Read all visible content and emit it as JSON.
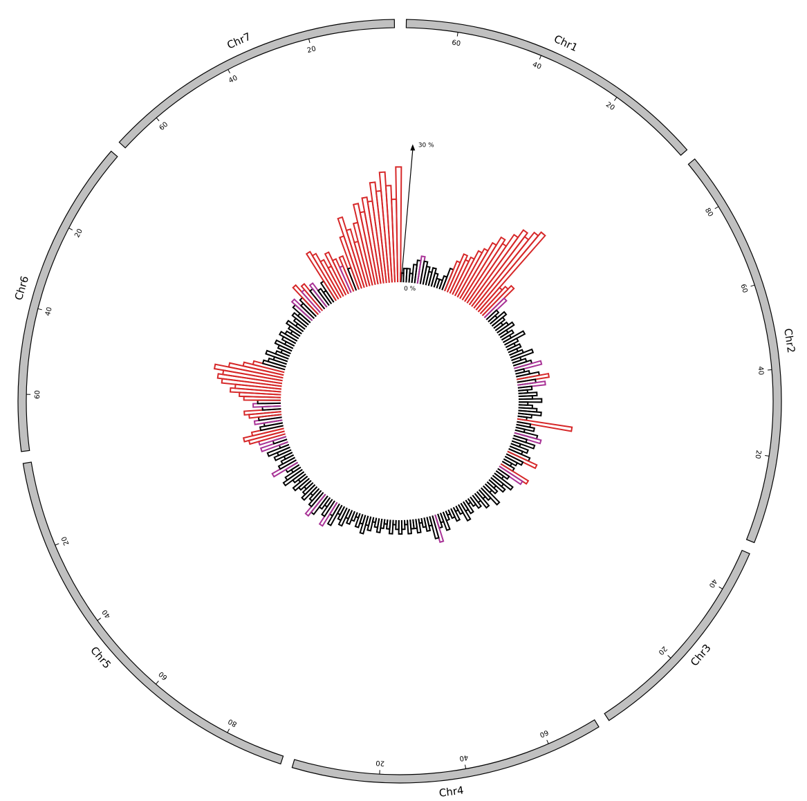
{
  "colors": {
    "ideogram_fill": "#c0c0c0",
    "ideogram_stroke": "#000000",
    "low": "#000000",
    "mid": "#a83296",
    "high": "#d62728"
  },
  "chart_data": {
    "type": "circular-histogram",
    "title": "",
    "value_unit": "%",
    "rmax_value": 30,
    "scale": {
      "min_label": "0 %",
      "max_label": "30 %"
    },
    "chromosomes": [
      {
        "name": "Chr1",
        "label": "Chr1",
        "length": 72,
        "ticks": [
          20,
          40,
          60
        ]
      },
      {
        "name": "Chr2",
        "label": "Chr2",
        "length": 92,
        "ticks": [
          20,
          40,
          60,
          80
        ]
      },
      {
        "name": "Chr3",
        "label": "Chr3",
        "length": 50,
        "ticks": [
          20,
          40
        ]
      },
      {
        "name": "Chr4",
        "label": "Chr4",
        "length": 72,
        "ticks": [
          20,
          40,
          60
        ]
      },
      {
        "name": "Chr5",
        "label": "Chr5",
        "length": 94,
        "ticks": [
          20,
          40,
          60,
          80
        ]
      },
      {
        "name": "Chr6",
        "label": "Chr6",
        "length": 73,
        "ticks": [
          20,
          40,
          60
        ]
      },
      {
        "name": "Chr7",
        "label": "Chr7",
        "length": 70,
        "ticks": [
          20,
          40,
          60
        ]
      }
    ],
    "histogram_percent": [
      2,
      3,
      3,
      2,
      4,
      5,
      6,
      5,
      4,
      3,
      4,
      3,
      2,
      2,
      3,
      5,
      7,
      9,
      8,
      9,
      11,
      12,
      14,
      16,
      15,
      18,
      20,
      19,
      21,
      22,
      7,
      8,
      9,
      6,
      3,
      2,
      4,
      3,
      2,
      3,
      4,
      2,
      3,
      2,
      5,
      3,
      2,
      3,
      2,
      3,
      5,
      2,
      3,
      4,
      6,
      2,
      3,
      5,
      7,
      4,
      6,
      3,
      2,
      4,
      3,
      5,
      2,
      3,
      4,
      5,
      3,
      2,
      12,
      3,
      4,
      2,
      5,
      6,
      3,
      5,
      2,
      4,
      3,
      5,
      7,
      4,
      3,
      2,
      3,
      7,
      6,
      3,
      2,
      5,
      3,
      4,
      2,
      3,
      2,
      5,
      3,
      2,
      4,
      2,
      3,
      2,
      1,
      3,
      2,
      4,
      2,
      1,
      3,
      2,
      1,
      2,
      4,
      2,
      3,
      6,
      5,
      2,
      3,
      2,
      1,
      3,
      2,
      2,
      3,
      1,
      2,
      3,
      2,
      1,
      3,
      2,
      1,
      2,
      3,
      2,
      1,
      3,
      2,
      4,
      2,
      3,
      1,
      2,
      3,
      2,
      4,
      3,
      2,
      5,
      3,
      6,
      4,
      2,
      3,
      5,
      6,
      4,
      3,
      2,
      4,
      3,
      2,
      3,
      4,
      2,
      3,
      5,
      4,
      2,
      3,
      6,
      4,
      3,
      2,
      4,
      3,
      5,
      2,
      6,
      3,
      6,
      8,
      9,
      7,
      5,
      4,
      6,
      5,
      7,
      8,
      4,
      6,
      5,
      8,
      9,
      11,
      10,
      13,
      14,
      13,
      15,
      12,
      9,
      7,
      5,
      4,
      3,
      5,
      3,
      2,
      3,
      4,
      2,
      3,
      4,
      3,
      2,
      3,
      4,
      2,
      3,
      4,
      3,
      5,
      6,
      4,
      5,
      8,
      6,
      7,
      5,
      6,
      4,
      3,
      5,
      12,
      11,
      9,
      7,
      10,
      8,
      6,
      8,
      5,
      12,
      16,
      13,
      10,
      14,
      18,
      16,
      19,
      18,
      22,
      20,
      24,
      21,
      18,
      25
    ],
    "thresholds": {
      "mid": 5.5,
      "high": 7
    }
  }
}
